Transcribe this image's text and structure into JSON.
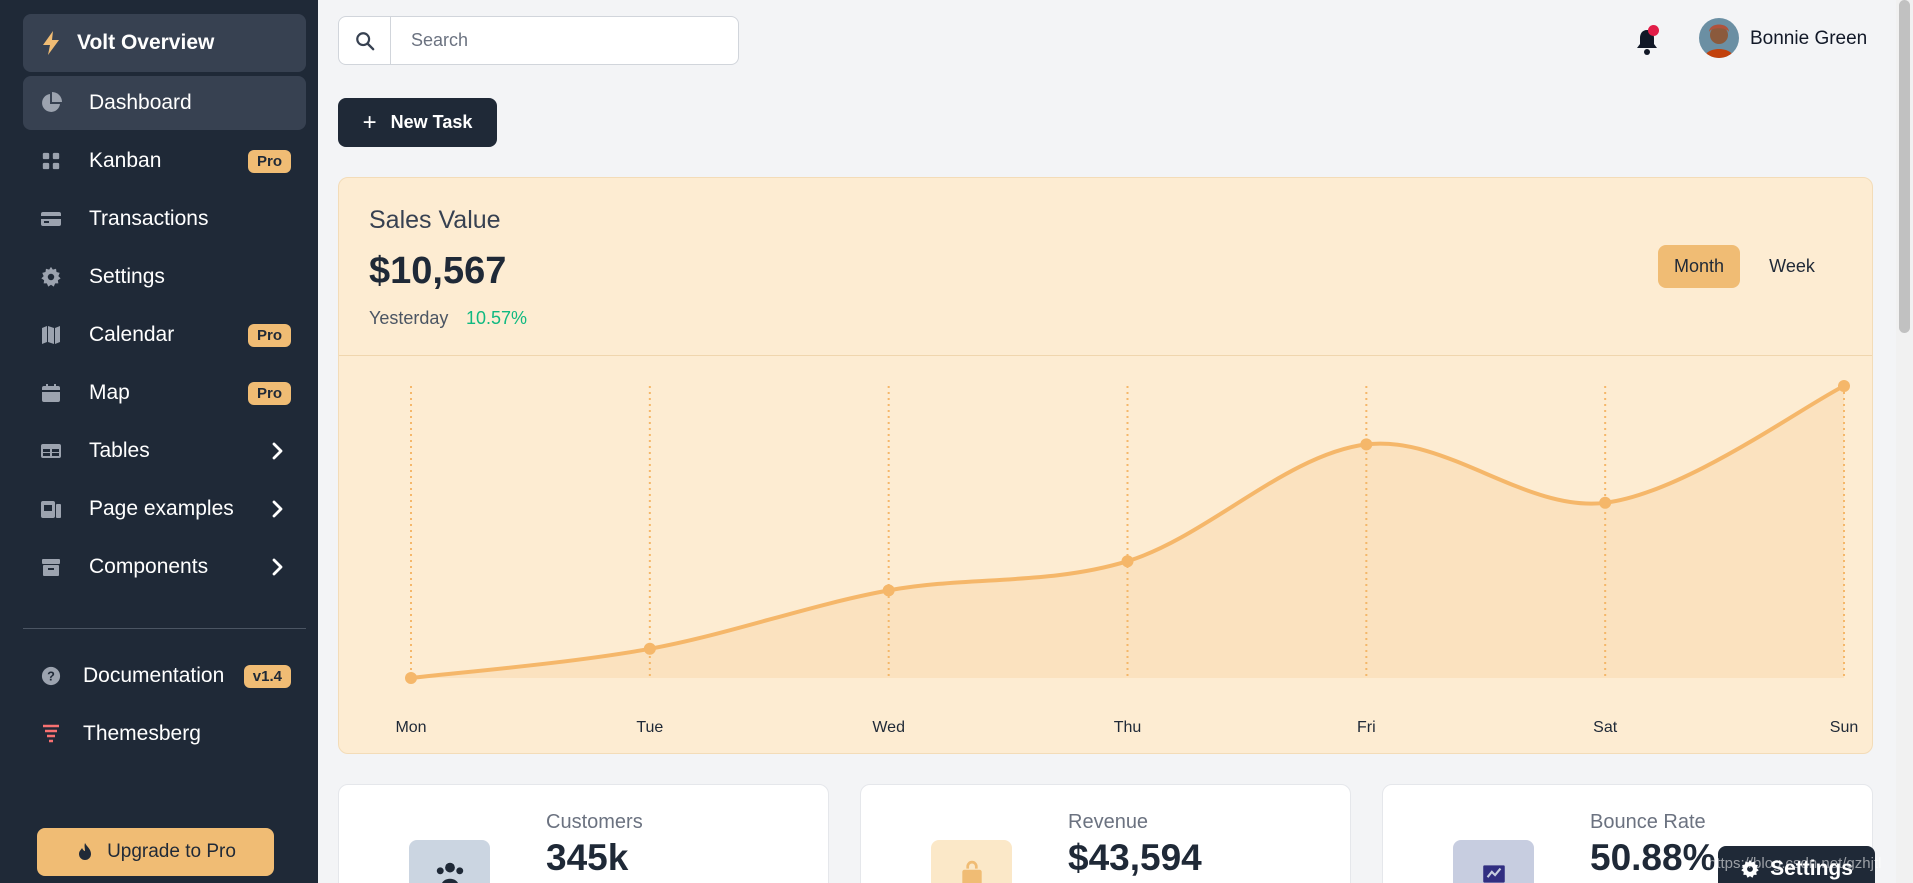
{
  "sidebar": {
    "brand": "Volt Overview",
    "items": [
      {
        "label": "Dashboard",
        "icon": "chart-pie-icon"
      },
      {
        "label": "Kanban",
        "icon": "grid-icon",
        "badge": "Pro"
      },
      {
        "label": "Transactions",
        "icon": "credit-card-icon"
      },
      {
        "label": "Settings",
        "icon": "gear-icon"
      },
      {
        "label": "Calendar",
        "icon": "calendar-icon",
        "badge": "Pro"
      },
      {
        "label": "Map",
        "icon": "map-icon",
        "badge": "Pro"
      },
      {
        "label": "Tables",
        "icon": "table-icon"
      },
      {
        "label": "Page examples",
        "icon": "pages-icon"
      },
      {
        "label": "Components",
        "icon": "archive-icon"
      }
    ],
    "documentation": {
      "label": "Documentation",
      "badge": "v1.4"
    },
    "themesberg": "Themesberg",
    "upgrade": "Upgrade to Pro"
  },
  "search": {
    "placeholder": "Search"
  },
  "user": {
    "name": "Bonnie Green"
  },
  "new_task": "New Task",
  "sales": {
    "title": "Sales Value",
    "value": "$10,567",
    "yesterday_label": "Yesterday",
    "change": "10.57%",
    "toggle": {
      "month": "Month",
      "week": "Week"
    }
  },
  "chart_data": {
    "type": "area",
    "categories": [
      "Mon",
      "Tue",
      "Wed",
      "Thu",
      "Fri",
      "Sat",
      "Sun"
    ],
    "values": [
      0,
      10,
      30,
      40,
      80,
      60,
      100
    ],
    "ylim": [
      0,
      100
    ],
    "color": "#f5b76a"
  },
  "stats": [
    {
      "label": "Customers",
      "value": "345k",
      "icon": "users-icon",
      "color": "#cbd5e1"
    },
    {
      "label": "Revenue",
      "value": "$43,594",
      "icon": "cash-icon",
      "color": "#fbe8c8"
    },
    {
      "label": "Bounce Rate",
      "value": "50.88%",
      "icon": "presentation-chart-icon",
      "color": "#c7cde0"
    }
  ],
  "floating_settings": "Settings",
  "watermark": "https://blog.csdn.net/gzhjtl"
}
